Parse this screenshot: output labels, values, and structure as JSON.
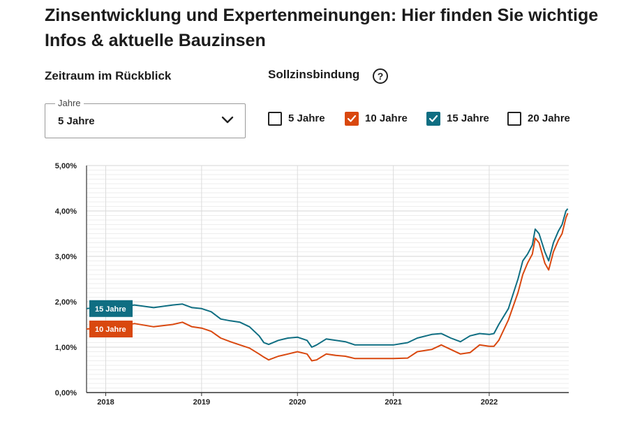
{
  "header": {
    "title": "Zinsentwicklung und Expertenmeinungen: Hier finden Sie wichtige Infos & aktuelle Bauzinsen"
  },
  "controls": {
    "zeitraum_label": "Zeitraum im Rückblick",
    "sollzins_label": "Sollzinsbindung",
    "help_glyph": "?",
    "select": {
      "legend": "Jahre",
      "value": "5 Jahre"
    },
    "checkboxes": [
      {
        "label": "5 Jahre",
        "checked": false,
        "color": "#ffffff"
      },
      {
        "label": "10 Jahre",
        "checked": true,
        "color": "#d9480f"
      },
      {
        "label": "15 Jahre",
        "checked": true,
        "color": "#0f6e82"
      },
      {
        "label": "20 Jahre",
        "checked": false,
        "color": "#ffffff"
      }
    ]
  },
  "chart_data": {
    "type": "line",
    "title": "",
    "xlabel": "",
    "ylabel": "",
    "x_ticks": [
      "2018",
      "2019",
      "2020",
      "2021",
      "2022"
    ],
    "y_ticks": [
      "0,00%",
      "1,00%",
      "2,00%",
      "3,00%",
      "4,00%",
      "5,00%"
    ],
    "ylim": [
      0,
      5
    ],
    "xlim": [
      2017.8,
      2022.83
    ],
    "grid": true,
    "series": [
      {
        "name": "15 Jahre",
        "color": "#0f6e82",
        "points": [
          [
            2017.8,
            1.85
          ],
          [
            2017.95,
            1.88
          ],
          [
            2018.1,
            1.92
          ],
          [
            2018.2,
            1.9
          ],
          [
            2018.3,
            1.93
          ],
          [
            2018.5,
            1.87
          ],
          [
            2018.7,
            1.93
          ],
          [
            2018.8,
            1.95
          ],
          [
            2018.9,
            1.87
          ],
          [
            2019.0,
            1.85
          ],
          [
            2019.1,
            1.78
          ],
          [
            2019.2,
            1.62
          ],
          [
            2019.3,
            1.58
          ],
          [
            2019.4,
            1.55
          ],
          [
            2019.5,
            1.45
          ],
          [
            2019.6,
            1.25
          ],
          [
            2019.65,
            1.1
          ],
          [
            2019.7,
            1.06
          ],
          [
            2019.8,
            1.15
          ],
          [
            2019.9,
            1.2
          ],
          [
            2020.0,
            1.22
          ],
          [
            2020.1,
            1.15
          ],
          [
            2020.15,
            1.0
          ],
          [
            2020.2,
            1.05
          ],
          [
            2020.3,
            1.18
          ],
          [
            2020.4,
            1.15
          ],
          [
            2020.5,
            1.12
          ],
          [
            2020.6,
            1.05
          ],
          [
            2020.8,
            1.05
          ],
          [
            2021.0,
            1.05
          ],
          [
            2021.15,
            1.1
          ],
          [
            2021.25,
            1.2
          ],
          [
            2021.4,
            1.28
          ],
          [
            2021.5,
            1.3
          ],
          [
            2021.6,
            1.2
          ],
          [
            2021.7,
            1.12
          ],
          [
            2021.8,
            1.25
          ],
          [
            2021.9,
            1.3
          ],
          [
            2022.0,
            1.28
          ],
          [
            2022.05,
            1.3
          ],
          [
            2022.1,
            1.5
          ],
          [
            2022.2,
            1.85
          ],
          [
            2022.3,
            2.5
          ],
          [
            2022.35,
            2.9
          ],
          [
            2022.4,
            3.05
          ],
          [
            2022.45,
            3.25
          ],
          [
            2022.48,
            3.6
          ],
          [
            2022.52,
            3.5
          ],
          [
            2022.58,
            3.1
          ],
          [
            2022.62,
            2.9
          ],
          [
            2022.67,
            3.3
          ],
          [
            2022.72,
            3.55
          ],
          [
            2022.76,
            3.7
          ],
          [
            2022.8,
            4.0
          ],
          [
            2022.82,
            4.05
          ]
        ]
      },
      {
        "name": "10 Jahre",
        "color": "#d9480f",
        "points": [
          [
            2017.8,
            1.4
          ],
          [
            2017.95,
            1.42
          ],
          [
            2018.1,
            1.5
          ],
          [
            2018.2,
            1.48
          ],
          [
            2018.3,
            1.52
          ],
          [
            2018.5,
            1.45
          ],
          [
            2018.7,
            1.5
          ],
          [
            2018.8,
            1.55
          ],
          [
            2018.9,
            1.45
          ],
          [
            2019.0,
            1.42
          ],
          [
            2019.1,
            1.35
          ],
          [
            2019.2,
            1.2
          ],
          [
            2019.3,
            1.12
          ],
          [
            2019.4,
            1.05
          ],
          [
            2019.5,
            0.98
          ],
          [
            2019.6,
            0.85
          ],
          [
            2019.65,
            0.78
          ],
          [
            2019.7,
            0.72
          ],
          [
            2019.8,
            0.8
          ],
          [
            2019.9,
            0.85
          ],
          [
            2020.0,
            0.9
          ],
          [
            2020.1,
            0.85
          ],
          [
            2020.15,
            0.7
          ],
          [
            2020.2,
            0.72
          ],
          [
            2020.3,
            0.85
          ],
          [
            2020.4,
            0.82
          ],
          [
            2020.5,
            0.8
          ],
          [
            2020.6,
            0.75
          ],
          [
            2020.8,
            0.75
          ],
          [
            2021.0,
            0.75
          ],
          [
            2021.15,
            0.76
          ],
          [
            2021.25,
            0.9
          ],
          [
            2021.4,
            0.95
          ],
          [
            2021.5,
            1.05
          ],
          [
            2021.6,
            0.95
          ],
          [
            2021.7,
            0.85
          ],
          [
            2021.8,
            0.88
          ],
          [
            2021.9,
            1.05
          ],
          [
            2022.0,
            1.02
          ],
          [
            2022.05,
            1.02
          ],
          [
            2022.1,
            1.15
          ],
          [
            2022.2,
            1.6
          ],
          [
            2022.3,
            2.2
          ],
          [
            2022.35,
            2.6
          ],
          [
            2022.4,
            2.85
          ],
          [
            2022.45,
            3.05
          ],
          [
            2022.48,
            3.4
          ],
          [
            2022.52,
            3.3
          ],
          [
            2022.58,
            2.85
          ],
          [
            2022.62,
            2.7
          ],
          [
            2022.67,
            3.1
          ],
          [
            2022.72,
            3.35
          ],
          [
            2022.76,
            3.5
          ],
          [
            2022.8,
            3.85
          ],
          [
            2022.82,
            3.95
          ]
        ]
      }
    ]
  }
}
